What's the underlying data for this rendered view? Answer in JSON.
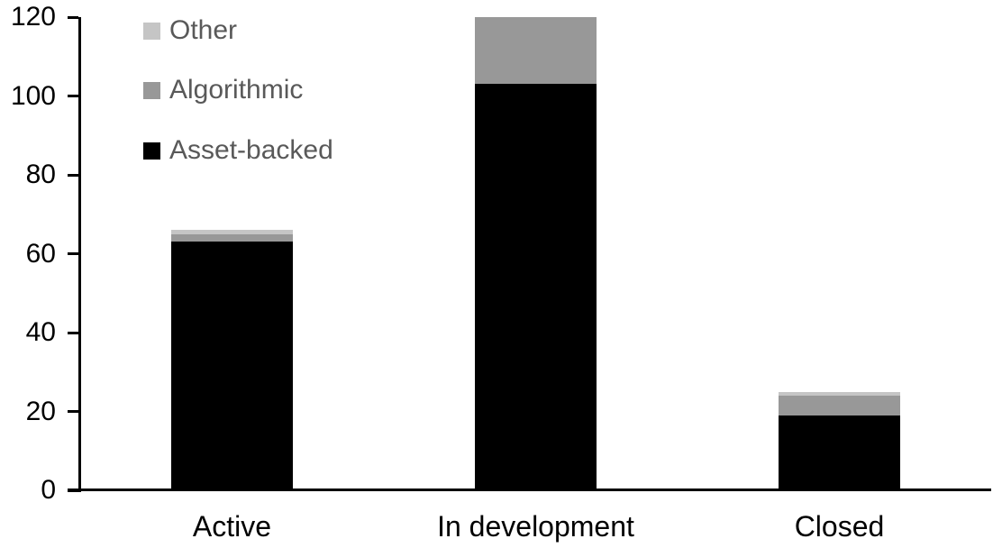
{
  "chart_data": {
    "type": "bar",
    "stacked": true,
    "title": "",
    "xlabel": "",
    "ylabel": "",
    "categories": [
      "Active",
      "In development",
      "Closed"
    ],
    "series": [
      {
        "name": "Asset-backed",
        "color": "#000000",
        "values": [
          63,
          103,
          19
        ]
      },
      {
        "name": "Algorithmic",
        "color": "#989898",
        "values": [
          2,
          17,
          5
        ]
      },
      {
        "name": "Other",
        "color": "#c5c5c5",
        "values": [
          1,
          0,
          1
        ]
      }
    ],
    "stack_totals": [
      66,
      120,
      25
    ],
    "ylim": [
      0,
      120
    ],
    "yticks": [
      0,
      20,
      40,
      60,
      80,
      100,
      120
    ],
    "grid": false,
    "legend_position": "top-left-inside",
    "legend": [
      {
        "label": "Other",
        "color": "#c5c5c5"
      },
      {
        "label": "Algorithmic",
        "color": "#989898"
      },
      {
        "label": "Asset-backed",
        "color": "#000000"
      }
    ],
    "colors": {
      "axis": "#000000",
      "tick_label_text": "#000000",
      "category_label_text": "#000000",
      "legend_text": "#595959",
      "background": "#ffffff"
    }
  }
}
